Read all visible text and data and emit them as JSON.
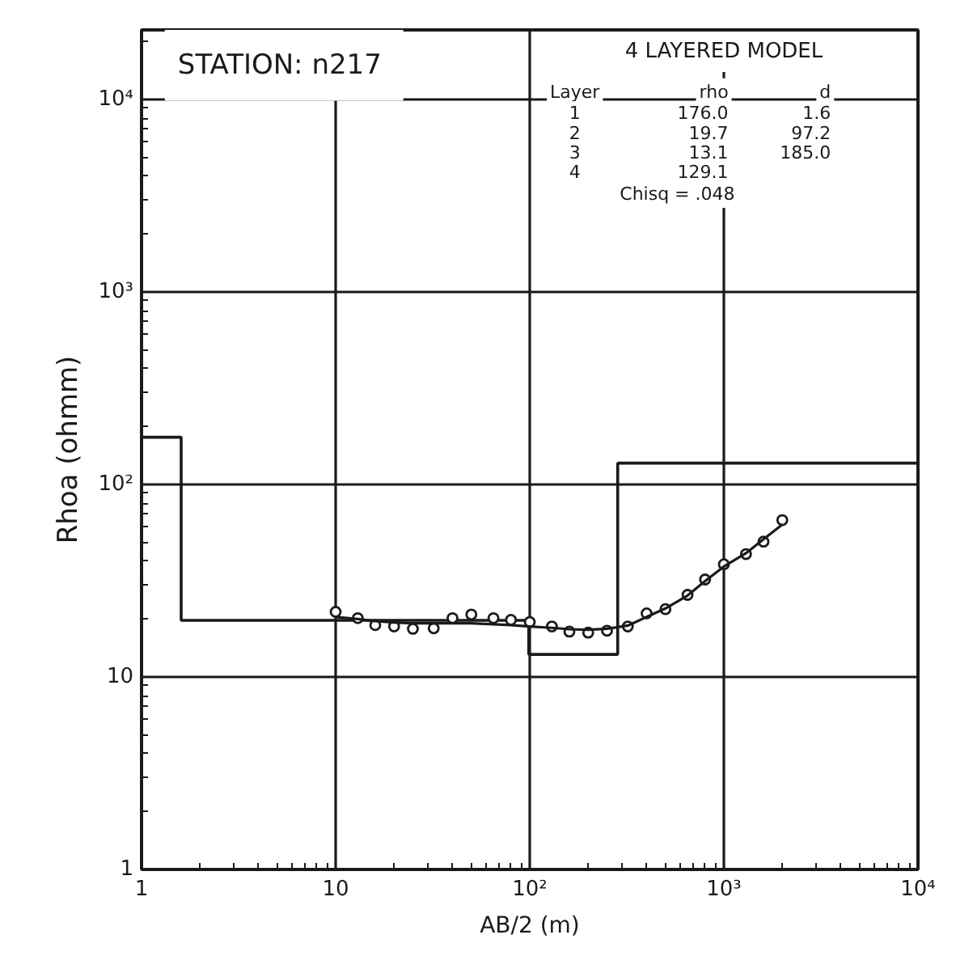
{
  "chart_data": {
    "type": "line",
    "xlabel": "AB/2 (m)",
    "ylabel": "Rhoa (ohmm)",
    "log": "xy",
    "xlim": [
      1,
      10000
    ],
    "ylim": [
      1,
      23000
    ],
    "xticks": [
      1,
      10,
      {
        "value": 100,
        "label": "10²"
      },
      {
        "value": 1000,
        "label": "10³"
      },
      {
        "value": 10000,
        "label": "10⁴"
      }
    ],
    "yticks": [
      1,
      10,
      {
        "value": 100,
        "label": "10²"
      },
      {
        "value": 1000,
        "label": "10³"
      },
      {
        "value": 10000,
        "label": "10⁴"
      }
    ],
    "grid": true,
    "series": [
      {
        "type": "step",
        "color": "#1a1a1a",
        "x": [
          1,
          1.6,
          98.8,
          283.8,
          10000
        ],
        "values": [
          176,
          19.7,
          13.1,
          129.1,
          129.1
        ]
      },
      {
        "type": "scatter",
        "marker": "circle",
        "color": "#1a1a1a",
        "x": [
          10,
          13,
          16,
          20,
          25,
          32,
          40,
          50,
          65,
          80,
          100,
          130,
          160,
          200,
          250,
          320,
          400,
          500,
          650,
          800,
          1000,
          1300,
          1600,
          2000
        ],
        "values": [
          21.8,
          20.2,
          18.6,
          18.3,
          17.8,
          17.9,
          20.2,
          21.1,
          20.2,
          19.8,
          19.3,
          18.3,
          17.2,
          17.0,
          17.4,
          18.3,
          21.4,
          22.5,
          26.7,
          32.1,
          38.5,
          43.5,
          50.5,
          65.3
        ]
      },
      {
        "color": "#1a1a1a",
        "x": [
          10,
          13,
          16,
          20,
          25,
          32,
          40,
          50,
          65,
          80,
          100,
          130,
          160,
          200,
          250,
          320,
          400,
          500,
          650,
          800,
          1000,
          1300,
          1600,
          2000
        ],
        "values": [
          20.5,
          20,
          19.5,
          19.2,
          19,
          19,
          19,
          19,
          18.8,
          18.6,
          18.3,
          18,
          17.7,
          17.6,
          17.8,
          18.5,
          20.5,
          22.7,
          26.5,
          31.5,
          37.5,
          44,
          52,
          62
        ]
      }
    ],
    "annotations": [
      "STATION:  n217",
      "4 LAYERED MODEL",
      "Layer rho d",
      "1 176.0 1.6",
      "2 19.7 97.2",
      "3 13.1 185.0",
      "4 129.1",
      "Chisq = .048"
    ]
  }
}
